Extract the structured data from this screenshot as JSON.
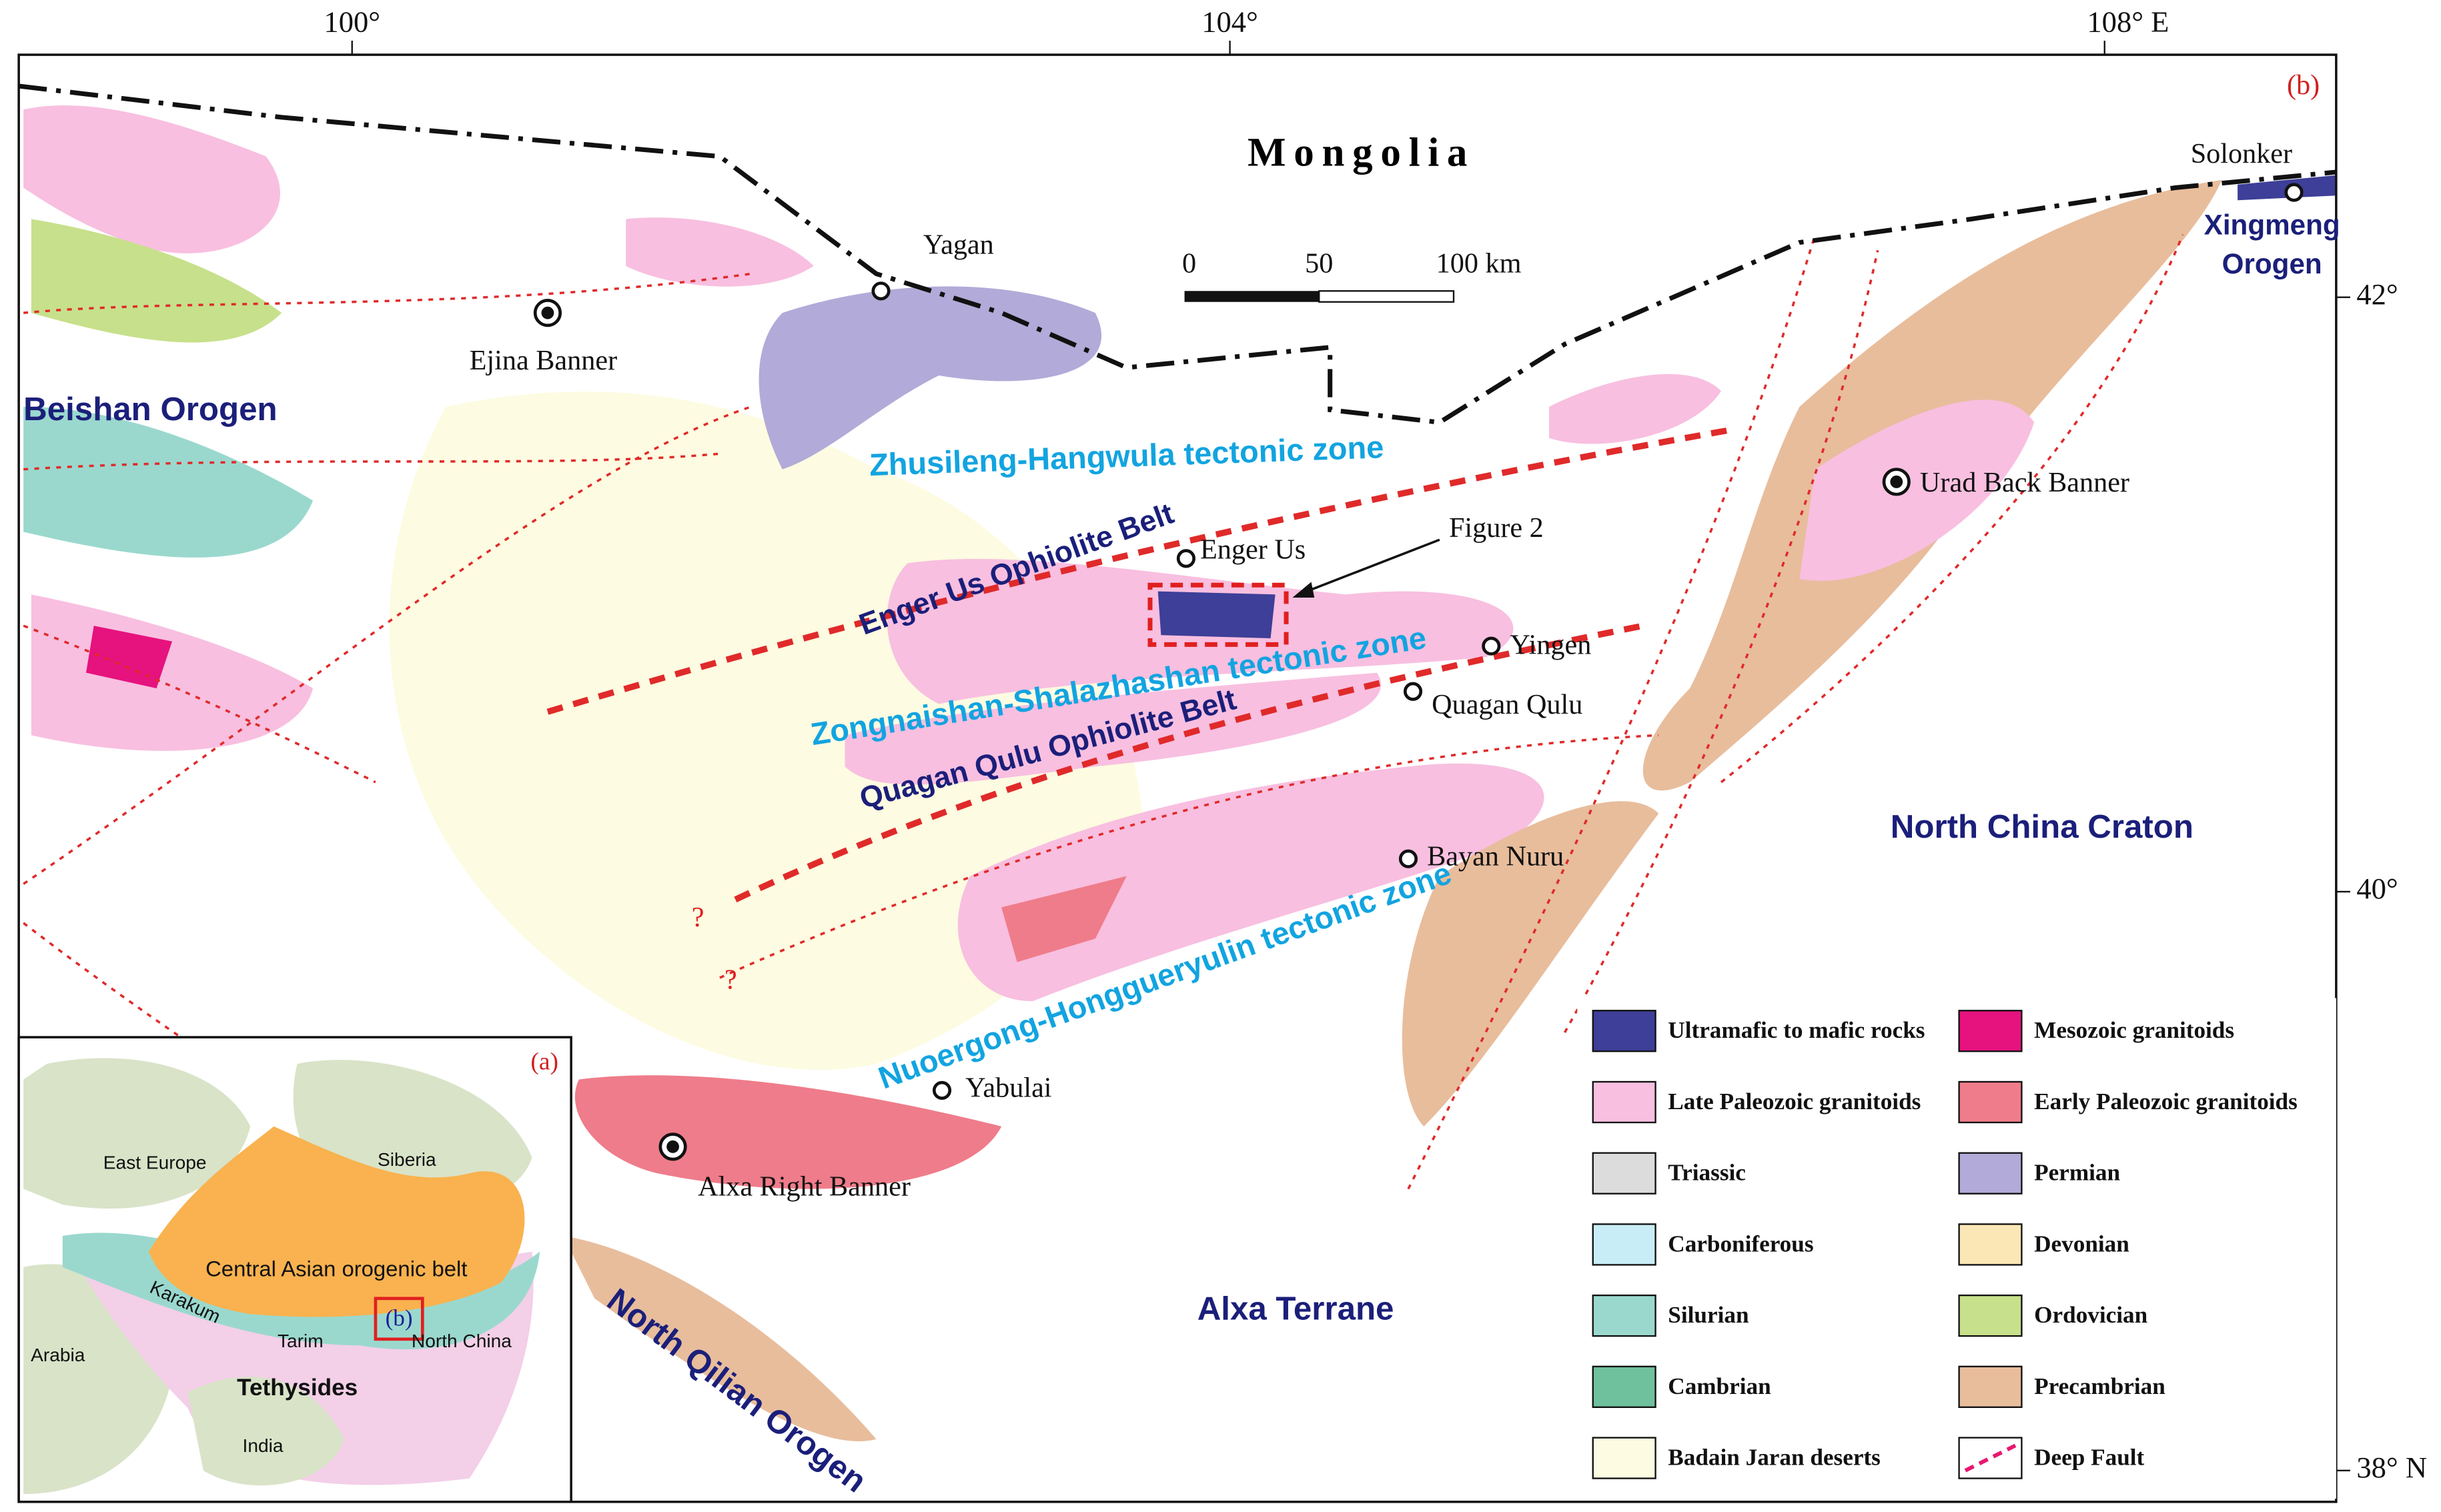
{
  "map_b": {
    "panel_label": "(b)",
    "country": "Mongolia",
    "longitude_labels": [
      "100°",
      "104°",
      "108° E"
    ],
    "latitude_labels": [
      "42°",
      "40°",
      "38° N"
    ],
    "scale_bar": [
      "0",
      "50",
      "100 km"
    ],
    "places": [
      "Yagan",
      "Ejina Banner",
      "Solonker",
      "Urad Back Banner",
      "Enger Us",
      "Yingen",
      "Quagan Qulu",
      "Bayan Nuru",
      "Yabulai",
      "Alxa Right Banner"
    ],
    "regions": [
      "Beishan Orogen",
      "Xingmeng",
      "Orogen",
      "North China Craton",
      "Alxa Terrane",
      "North Qilian Orogen"
    ],
    "zones": [
      "Zhusileng-Hangwula  tectonic zone",
      "Zongnaishan-Shalazhashan  tectonic  zone",
      "Nuoergong-Honggueryulin  tectonic zone"
    ],
    "belts": [
      "Enger Us Ophiolite Belt",
      "Quagan Qulu Ophiolite Belt"
    ],
    "callout": "Figure 2",
    "question_marks": [
      "?",
      "?"
    ]
  },
  "legend": [
    {
      "label": "Ultramafic to mafic rocks",
      "color": "#3d3f98"
    },
    {
      "label": "Mesozoic granitoids",
      "color": "#e6127e"
    },
    {
      "label": "Late Paleozoic granitoids",
      "color": "#f8bfe0"
    },
    {
      "label": "Early Paleozoic granitoids",
      "color": "#ef7c8a"
    },
    {
      "label": "Triassic",
      "color": "#dcdcdc"
    },
    {
      "label": "Permian",
      "color": "#b2aad8"
    },
    {
      "label": "Carboniferous",
      "color": "#c8edf6"
    },
    {
      "label": "Devonian",
      "color": "#fbe6b5"
    },
    {
      "label": "Silurian",
      "color": "#9ad8ce"
    },
    {
      "label": "Ordovician",
      "color": "#c7e08b"
    },
    {
      "label": "Cambrian",
      "color": "#6fc09c"
    },
    {
      "label": "Precambrian",
      "color": "#e8bd9c"
    },
    {
      "label": "Badain Jaran deserts",
      "color": "#fdfbe1"
    },
    {
      "label": "Deep   Fault",
      "color": "#e8186f",
      "line_style": "dashed"
    }
  ],
  "inset_a": {
    "panel_label": "(a)",
    "box_label": "(b)",
    "labels": [
      "East Europe",
      "Siberia",
      "Central Asian orogenic belt",
      "Karakum",
      "Tarim",
      "North China",
      "Tethysides",
      "Arabia",
      "India"
    ]
  }
}
